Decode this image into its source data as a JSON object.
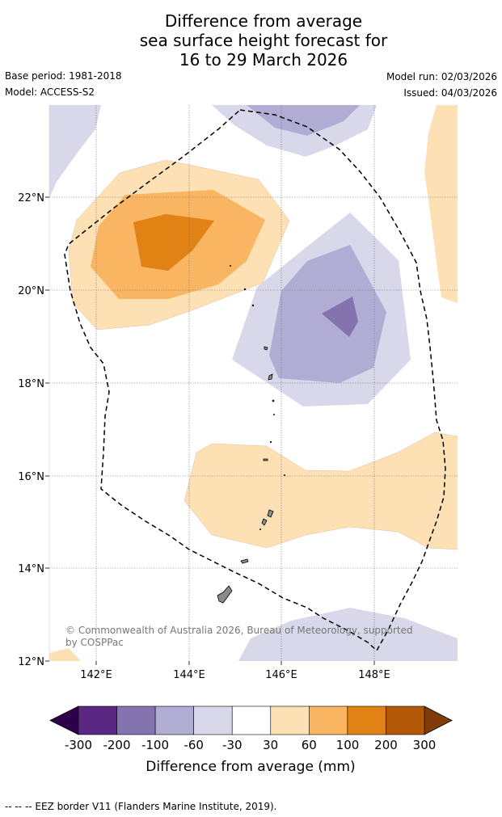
{
  "title_lines": [
    "Difference from average",
    "sea surface height forecast for",
    "16 to 29 March 2026"
  ],
  "base_period": "Base period: 1981-2018",
  "model": "Model: ACCESS-S2",
  "model_run": "Model run: 02/03/2026",
  "issued": "Issued: 04/03/2026",
  "map": {
    "lon_labels": [
      "142°E",
      "144°E",
      "146°E",
      "148°E"
    ],
    "lat_labels": [
      "22°N",
      "20°N",
      "18°N",
      "16°N",
      "14°N",
      "12°N"
    ],
    "copyright_lines": [
      "© Commonwealth of Australia 2026, Bureau of Meteorology, supported",
      "by COSPPac"
    ]
  },
  "colorbar": {
    "tick_labels": [
      "-300",
      "-200",
      "-100",
      "-60",
      "-30",
      "30",
      "60",
      "100",
      "200",
      "300"
    ],
    "title": "Difference from average (mm)",
    "colors": [
      "#5a2783",
      "#8374b0",
      "#b1acd3",
      "#d8d8ea",
      "#ffffff",
      "#fde0b4",
      "#f9b561",
      "#e08214",
      "#b35806"
    ],
    "under_color": "#2d004b",
    "over_color": "#7f3b08"
  },
  "footer": "--  --  -- EEZ border V11 (Flanders Marine Institute, 2019)."
}
